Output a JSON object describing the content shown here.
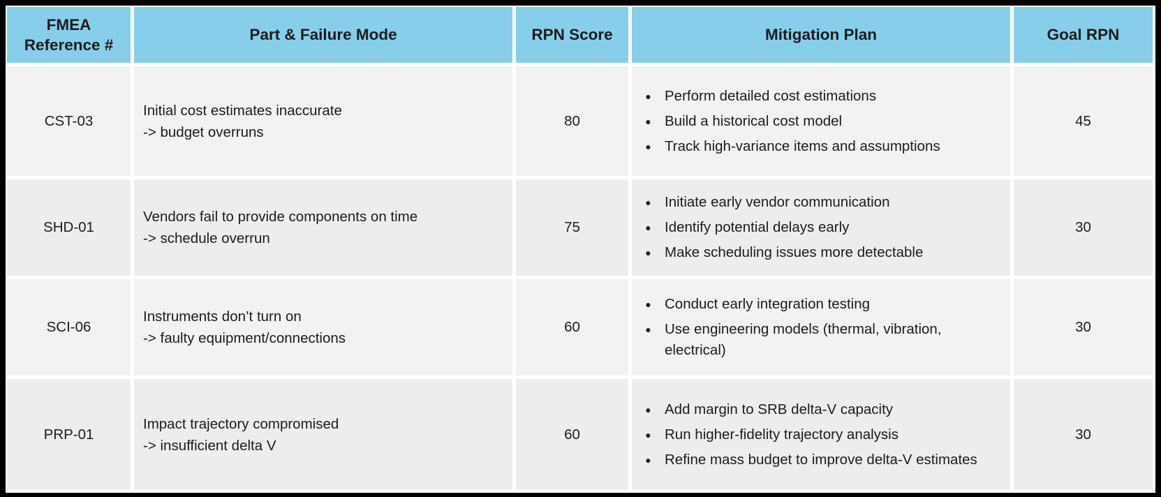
{
  "colors": {
    "header_bg": "#87CEEB",
    "row_light": "#F2F2F2",
    "row_dark": "#EDEDED",
    "frame": "#000000",
    "gutter": "#FFFFFF",
    "text": "#1C1C1C"
  },
  "icons": {
    "bullet": "●"
  },
  "table": {
    "headers": [
      "FMEA Reference #",
      "Part & Failure Mode",
      "RPN Score",
      "Mitigation Plan",
      "Goal RPN"
    ],
    "rows": [
      {
        "ref": "CST-03",
        "failure_line1": "Initial cost estimates inaccurate",
        "failure_line2": "-> budget overruns",
        "rpn": "80",
        "mitigations": [
          "Perform detailed cost estimations",
          "Build a historical cost model",
          "Track high-variance items and assumptions"
        ],
        "goal": "45"
      },
      {
        "ref": "SHD-01",
        "failure_line1": "Vendors fail to provide components on time",
        "failure_line2": "-> schedule overrun",
        "rpn": "75",
        "mitigations": [
          "Initiate early vendor communication",
          "Identify potential delays early",
          "Make scheduling issues more detectable"
        ],
        "goal": "30"
      },
      {
        "ref": "SCI-06",
        "failure_line1": "Instruments don’t turn on",
        "failure_line2": "-> faulty equipment/connections",
        "rpn": "60",
        "mitigations": [
          "Conduct early integration testing",
          "Use engineering models (thermal, vibration, electrical)"
        ],
        "goal": "30"
      },
      {
        "ref": "PRP-01",
        "failure_line1": "Impact trajectory compromised",
        "failure_line2": "-> insufficient delta V",
        "rpn": "60",
        "mitigations": [
          "Add margin to SRB delta-V capacity",
          "Run higher-fidelity trajectory analysis",
          "Refine mass budget to improve delta-V estimates"
        ],
        "goal": "30"
      }
    ]
  }
}
